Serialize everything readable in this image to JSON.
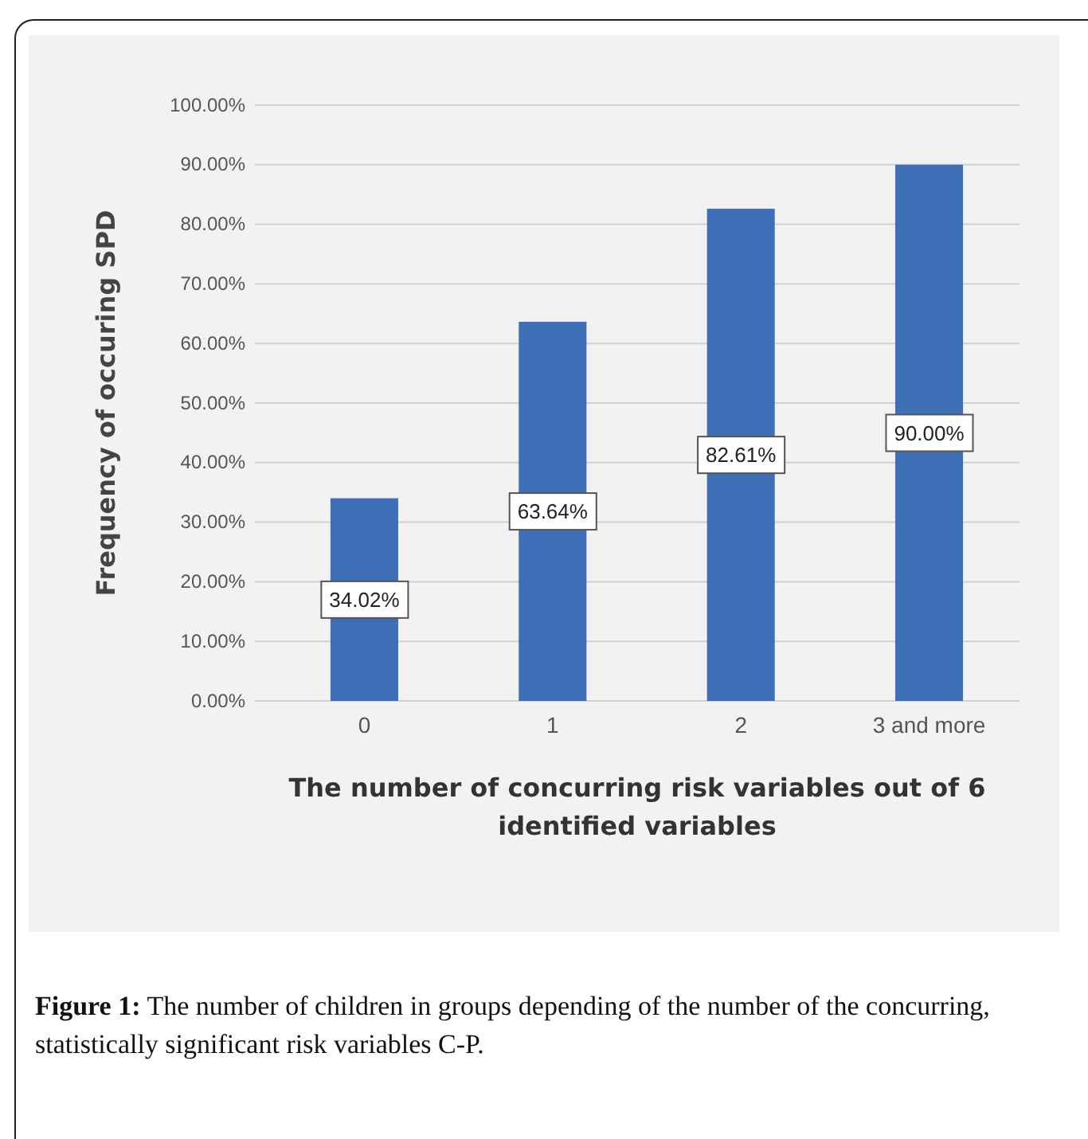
{
  "chart_data": {
    "type": "bar",
    "categories": [
      "0",
      "1",
      "2",
      "3 and more"
    ],
    "values": [
      34.02,
      63.64,
      82.61,
      90.0
    ],
    "value_labels": [
      "34.02%",
      "63.64%",
      "82.61%",
      "90.00%"
    ],
    "color": "#3f6fb6",
    "ylabel": "Frequency of occuring SPD",
    "xlabel": "The number of concurring risk variables out of 6 identified variables",
    "ylim": [
      0,
      100
    ],
    "yticks": [
      {
        "value": 0,
        "label": "0.00%"
      },
      {
        "value": 10,
        "label": "10.00%"
      },
      {
        "value": 20,
        "label": "20.00%"
      },
      {
        "value": 30,
        "label": "30.00%"
      },
      {
        "value": 40,
        "label": "40.00%"
      },
      {
        "value": 50,
        "label": "50.00%"
      },
      {
        "value": 60,
        "label": "60.00%"
      },
      {
        "value": 70,
        "label": "70.00%"
      },
      {
        "value": 80,
        "label": "80.00%"
      },
      {
        "value": 90,
        "label": "90.00%"
      },
      {
        "value": 100,
        "label": "100.00%"
      }
    ],
    "grid": "y",
    "annotations": [
      "Figure 1: The number of children in groups depending of the number of the concurring, statistically significant risk variables C-P."
    ]
  }
}
